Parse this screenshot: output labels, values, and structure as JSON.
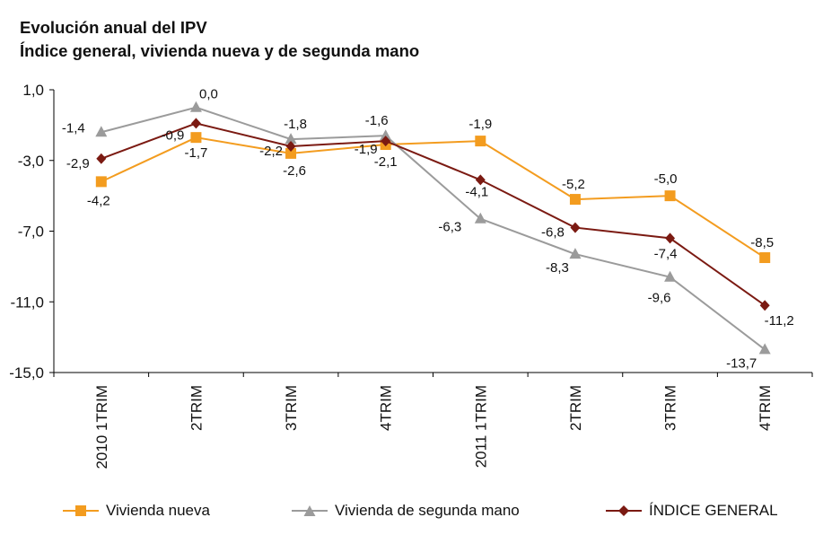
{
  "chart_data": {
    "type": "line",
    "title": "Evolución anual del IPV",
    "subtitle": "Índice general, vivienda nueva y de segunda mano",
    "xlabel": "",
    "ylabel": "",
    "categories": [
      "2010 1TRIM",
      "2TRIM",
      "3TRIM",
      "4TRIM",
      "2011 1TRIM",
      "2TRIM",
      "3TRIM",
      "4TRIM"
    ],
    "ylim": [
      -15.0,
      1.0
    ],
    "yticks": [
      "1,0",
      "-3,0",
      "-7,0",
      "-11,0",
      "-15,0"
    ],
    "grid": false,
    "legend_position": "bottom",
    "series": [
      {
        "name": "Vivienda nueva",
        "color": "#F39C1F",
        "marker": "square",
        "values": [
          -4.2,
          -1.7,
          -2.6,
          -2.1,
          -1.9,
          -5.2,
          -5.0,
          -8.5
        ],
        "labels": [
          "-4,2",
          "-1,7",
          "-2,6",
          "-2,1",
          "-1,9",
          "-5,2",
          "-5,0",
          "-8,5"
        ]
      },
      {
        "name": "Vivienda de segunda mano",
        "color": "#9B9B9B",
        "marker": "triangle",
        "values": [
          -1.4,
          0.0,
          -1.8,
          -1.6,
          -6.3,
          -8.3,
          -9.6,
          -13.7
        ],
        "labels": [
          "-1,4",
          "0,0",
          "-1,8",
          "-1,6",
          "-6,3",
          "-8,3",
          "-9,6",
          "-13,7"
        ]
      },
      {
        "name": "ÍNDICE GENERAL",
        "color": "#7B1A12",
        "marker": "diamond",
        "values": [
          -2.9,
          -0.9,
          -2.2,
          -1.9,
          -4.1,
          -6.8,
          -7.4,
          -11.2
        ],
        "labels": [
          "-2,9",
          "-0,9",
          "-2,2",
          "-1,9",
          "-4,1",
          "-6,8",
          "-7,4",
          "-11,2"
        ]
      }
    ]
  }
}
